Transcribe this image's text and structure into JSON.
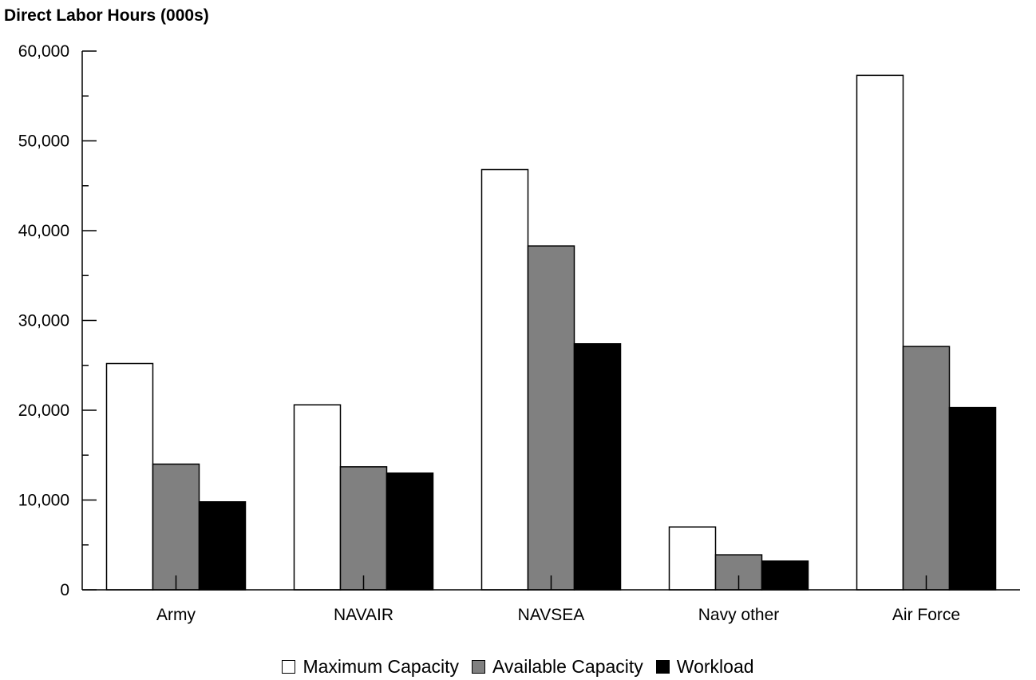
{
  "chart_data": {
    "type": "bar",
    "title": "Direct Labor Hours (000s)",
    "categories": [
      "Army",
      "NAVAIR",
      "NAVSEA",
      "Navy other",
      "Air Force"
    ],
    "series": [
      {
        "name": "Maximum Capacity",
        "color": "#ffffff",
        "values": [
          25200,
          20600,
          46800,
          7000,
          57300
        ]
      },
      {
        "name": "Available Capacity",
        "color": "#808080",
        "values": [
          14000,
          13700,
          38300,
          3900,
          27100
        ]
      },
      {
        "name": "Workload",
        "color": "#000000",
        "values": [
          9800,
          13000,
          27400,
          3200,
          20300
        ]
      }
    ],
    "ylim": [
      0,
      60000
    ],
    "y_ticks": [
      "0",
      "10,000",
      "20,000",
      "30,000",
      "40,000",
      "50,000",
      "60,000"
    ],
    "grid": false,
    "legend_position": "bottom"
  }
}
